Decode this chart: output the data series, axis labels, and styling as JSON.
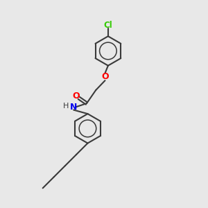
{
  "background_color": "#e8e8e8",
  "bond_color": "#3a3a3a",
  "cl_color": "#33cc00",
  "o_color": "#ff0000",
  "n_color": "#0000ee",
  "h_color": "#3a3a3a",
  "line_width": 1.5,
  "figsize": [
    3.0,
    3.0
  ],
  "dpi": 100,
  "ring_r": 0.72,
  "upper_ring": [
    5.2,
    7.6
  ],
  "lower_ring": [
    4.2,
    3.8
  ]
}
